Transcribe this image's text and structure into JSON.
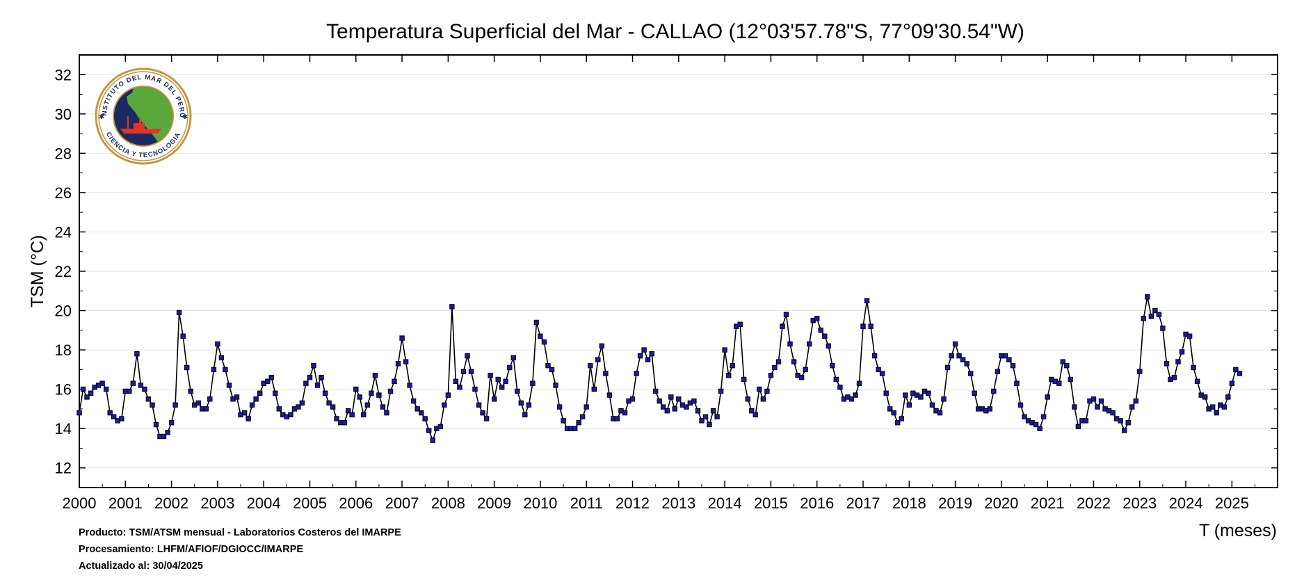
{
  "chart_data": {
    "type": "line",
    "title": "Temperatura Superficial del Mar - CALLAO (12°03'57.78\"S, 77°09'30.54\"W)",
    "xlabel": "T (meses)",
    "ylabel": "TSM (°C)",
    "xlim": [
      2000,
      2025.99
    ],
    "ylim": [
      11,
      33
    ],
    "yticks": [
      12,
      14,
      16,
      18,
      20,
      22,
      24,
      26,
      28,
      30,
      32
    ],
    "xticks": [
      2000,
      2001,
      2002,
      2003,
      2004,
      2005,
      2006,
      2007,
      2008,
      2009,
      2010,
      2011,
      2012,
      2013,
      2014,
      2015,
      2016,
      2017,
      2018,
      2019,
      2020,
      2021,
      2022,
      2023,
      2024,
      2025
    ],
    "grid": true,
    "marker": "square",
    "colors": {
      "line": "#000000",
      "marker_fill": "#1a1aa8",
      "marker_edge": "#000000",
      "grid": "#e3e3e3"
    },
    "series": [
      {
        "start": "2000-01",
        "values": [
          14.8,
          16.0,
          15.6,
          15.8,
          16.1,
          16.2,
          16.3,
          16.0,
          14.8,
          14.6,
          14.4,
          14.5,
          15.9,
          15.9,
          16.3,
          17.8,
          16.2,
          16.0,
          15.5,
          15.2,
          14.2,
          13.6,
          13.6,
          13.8,
          14.3,
          15.2,
          19.9,
          18.7,
          17.1,
          15.9,
          15.2,
          15.3,
          15.0,
          15.0,
          15.5,
          17.0,
          18.3,
          17.6,
          17.0,
          16.2,
          15.5,
          15.6,
          14.7,
          14.8,
          14.5,
          15.2,
          15.5,
          15.8,
          16.3,
          16.4,
          16.6,
          15.8,
          15.0,
          14.7,
          14.6,
          14.7,
          15.0,
          15.1,
          15.3,
          16.3,
          16.6,
          17.2,
          16.2,
          16.6,
          15.8,
          15.3,
          15.1,
          14.5,
          14.3,
          14.3,
          14.9,
          14.7,
          16.0,
          15.6,
          14.7,
          15.2,
          15.8,
          16.7,
          15.7,
          15.1,
          14.8,
          15.9,
          16.4,
          17.3,
          18.6,
          17.4,
          16.2,
          15.4,
          15.0,
          14.8,
          14.5,
          13.9,
          13.4,
          14.0,
          14.1,
          15.2,
          15.7,
          20.2,
          16.4,
          16.1,
          16.9,
          17.7,
          16.9,
          16.0,
          15.2,
          14.8,
          14.5,
          16.7,
          15.5,
          16.5,
          16.1,
          16.4,
          17.1,
          17.6,
          15.9,
          15.3,
          14.7,
          15.2,
          16.3,
          19.4,
          18.7,
          18.4,
          17.2,
          17.0,
          16.2,
          15.1,
          14.4,
          14.0,
          14.0,
          14.0,
          14.3,
          14.6,
          15.1,
          17.2,
          16.0,
          17.5,
          18.2,
          16.8,
          15.7,
          14.5,
          14.5,
          14.9,
          14.8,
          15.4,
          15.5,
          16.8,
          17.7,
          18.0,
          17.5,
          17.8,
          15.9,
          15.4,
          15.1,
          14.9,
          15.6,
          15.0,
          15.5,
          15.2,
          15.1,
          15.3,
          15.4,
          14.9,
          14.4,
          14.6,
          14.2,
          14.9,
          14.6,
          15.9,
          18.0,
          16.7,
          17.2,
          19.2,
          19.3,
          16.5,
          15.5,
          14.9,
          14.7,
          16.0,
          15.5,
          15.9,
          16.7,
          17.1,
          17.4,
          19.2,
          19.8,
          18.3,
          17.4,
          16.7,
          16.6,
          17.0,
          18.3,
          19.5,
          19.6,
          19.0,
          18.7,
          18.2,
          17.2,
          16.5,
          16.1,
          15.5,
          15.6,
          15.5,
          15.7,
          16.3,
          19.2,
          20.5,
          19.2,
          17.7,
          17.0,
          16.8,
          15.8,
          15.0,
          14.8,
          14.3,
          14.5,
          15.7,
          15.2,
          15.8,
          15.7,
          15.6,
          15.9,
          15.8,
          15.2,
          14.9,
          14.8,
          15.5,
          17.1,
          17.7,
          18.3,
          17.7,
          17.5,
          17.3,
          16.8,
          15.8,
          15.0,
          15.0,
          14.9,
          15.0,
          15.9,
          16.9,
          17.7,
          17.7,
          17.5,
          17.2,
          16.3,
          15.2,
          14.6,
          14.4,
          14.3,
          14.2,
          14.0,
          14.6,
          15.6,
          16.5,
          16.4,
          16.3,
          17.4,
          17.2,
          16.5,
          15.1,
          14.1,
          14.4,
          14.4,
          15.4,
          15.5,
          15.1,
          15.4,
          15.0,
          14.9,
          14.8,
          14.5,
          14.4,
          13.9,
          14.3,
          15.1,
          15.4,
          16.9,
          19.6,
          20.7,
          19.7,
          20.0,
          19.8,
          19.1,
          17.3,
          16.5,
          16.6,
          17.4,
          17.9,
          18.8,
          18.7,
          17.1,
          16.4,
          15.7,
          15.6,
          15.0,
          15.1,
          14.8,
          15.2,
          15.1,
          15.6,
          16.3,
          17.0,
          16.8
        ]
      }
    ]
  },
  "footer": {
    "producto": "Producto: TSM/ATSM mensual - Laboratorios Costeros del IMARPE",
    "procesamiento": "Procesamiento: LHFM/AFIOF/DGIOCC/IMARPE",
    "actualizado": "Actualizado al: 30/04/2025"
  },
  "logo": {
    "top_text": "INSTITUTO DEL MAR DEL PERU",
    "bottom_text": "CIENCIA Y TECNOLOGIA",
    "colors": {
      "ring": "#c8963c",
      "sea": "#1b2a63",
      "land": "#5aa83a",
      "ship": "#e0352b"
    }
  }
}
